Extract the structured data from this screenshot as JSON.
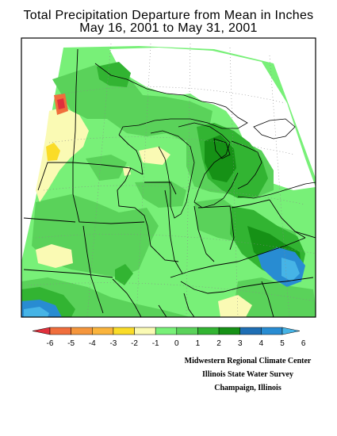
{
  "title": {
    "line1": "Total Precipitation Departure from Mean in Inches",
    "line2": "May 16, 2001 to May 31, 2001"
  },
  "colorbar": {
    "tick_labels": [
      "-6",
      "-5",
      "-4",
      "-3",
      "-2",
      "-1",
      "0",
      "1",
      "2",
      "3",
      "4",
      "5",
      "6"
    ],
    "colors": [
      "#e0303c",
      "#f06e3c",
      "#f5963c",
      "#fab43c",
      "#fadc28",
      "#fafab4",
      "#78f078",
      "#5ad25a",
      "#32b432",
      "#169116",
      "#1e6eb4",
      "#288cd2",
      "#46b4e6"
    ]
  },
  "credits": {
    "line1": "Midwestern Regional Climate Center",
    "line2": "Illinois State Water Survey",
    "line3": "Champaign, Illinois"
  }
}
